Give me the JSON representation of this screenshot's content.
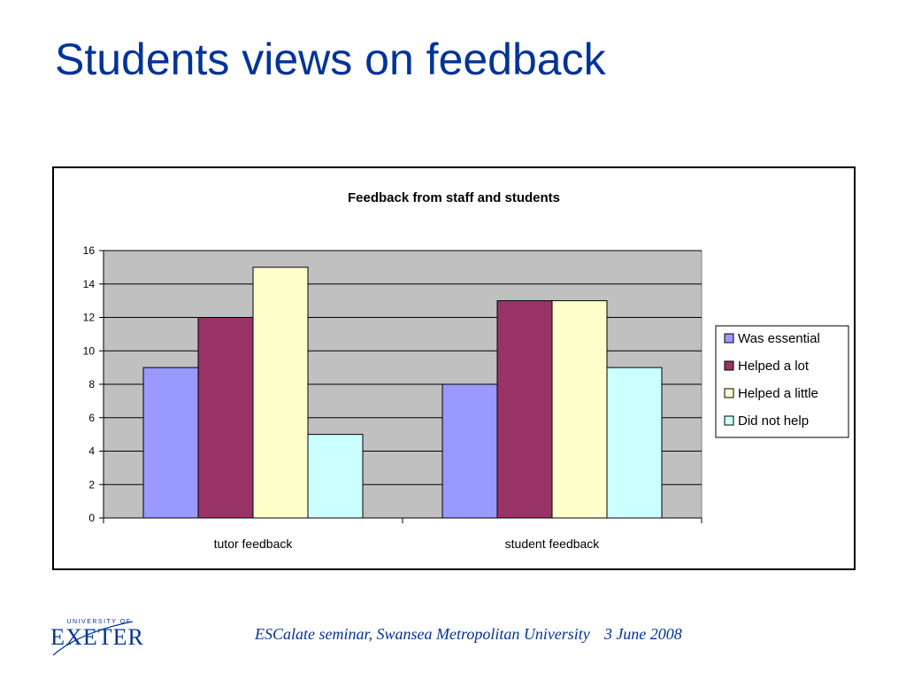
{
  "slide": {
    "title": "Students views on feedback",
    "footer_event": "ESCalate seminar, Swansea Metropolitan University",
    "footer_date": "3 June 2008",
    "logo_small": "UNIVERSITY OF",
    "logo_word": "EXETER"
  },
  "colors": {
    "title": "#003399",
    "plot_background": "#C0C0C0",
    "series": [
      "#9999FF",
      "#993366",
      "#FFFFCC",
      "#CCFFFF"
    ]
  },
  "chart_data": {
    "type": "bar",
    "title": "Feedback from staff and students",
    "xlabel": "",
    "ylabel": "",
    "categories": [
      "tutor feedback",
      "student feedback"
    ],
    "series": [
      {
        "name": "Was essential",
        "values": [
          9,
          8
        ]
      },
      {
        "name": "Helped a lot",
        "values": [
          12,
          13
        ]
      },
      {
        "name": "Helped a little",
        "values": [
          15,
          13
        ]
      },
      {
        "name": "Did not help",
        "values": [
          5,
          9
        ]
      }
    ],
    "ylim": [
      0,
      16
    ],
    "yticks": [
      0,
      2,
      4,
      6,
      8,
      10,
      12,
      14,
      16
    ],
    "grid": true,
    "legend": "right"
  }
}
